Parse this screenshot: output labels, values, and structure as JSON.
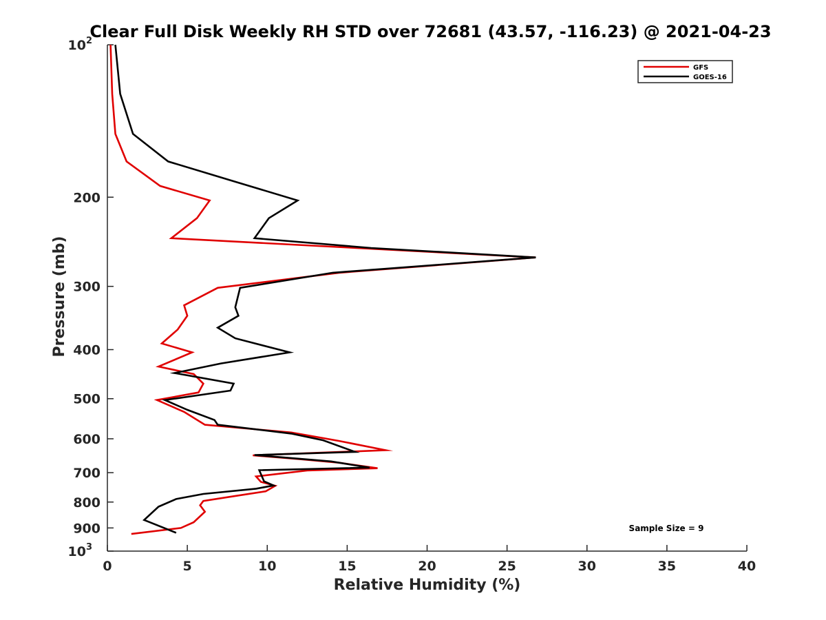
{
  "chart_data": {
    "type": "line",
    "title": "Clear Full Disk Weekly RH STD over 72681 (43.57, -116.23) @ 2021-04-23",
    "xlabel": "Relative Humidity (%)",
    "ylabel": "Pressure (mb)",
    "xlim": [
      0,
      40
    ],
    "ylim": [
      100,
      1000
    ],
    "y_scale": "log",
    "y_reversed": true,
    "x_ticks": [
      "0",
      "5",
      "10",
      "15",
      "20",
      "25",
      "30",
      "35",
      "40"
    ],
    "y_ticks": [
      {
        "value": 100,
        "base": "10",
        "exp": "2"
      },
      {
        "value": 200,
        "label": "200"
      },
      {
        "value": 300,
        "label": "300"
      },
      {
        "value": 400,
        "label": "400"
      },
      {
        "value": 500,
        "label": "500"
      },
      {
        "value": 600,
        "label": "600"
      },
      {
        "value": 700,
        "label": "700"
      },
      {
        "value": 800,
        "label": "800"
      },
      {
        "value": 900,
        "label": "900"
      },
      {
        "value": 1000,
        "base": "10",
        "exp": "3"
      }
    ],
    "legend_position": "top-right",
    "grid": false,
    "series": [
      {
        "name": "GFS",
        "color": "#e00000",
        "points": [
          [
            0.2,
            100
          ],
          [
            0.3,
            125
          ],
          [
            0.5,
            150
          ],
          [
            1.2,
            170
          ],
          [
            3.3,
            190
          ],
          [
            6.4,
            203
          ],
          [
            5.6,
            220
          ],
          [
            4.0,
            241
          ],
          [
            26.8,
            263
          ],
          [
            14.5,
            282
          ],
          [
            6.9,
            302
          ],
          [
            4.8,
            327
          ],
          [
            5.0,
            343
          ],
          [
            4.4,
            365
          ],
          [
            3.4,
            389
          ],
          [
            5.3,
            405
          ],
          [
            3.2,
            432
          ],
          [
            5.4,
            447
          ],
          [
            6.0,
            467
          ],
          [
            5.7,
            486
          ],
          [
            3.1,
            503
          ],
          [
            4.8,
            531
          ],
          [
            6.1,
            563
          ],
          [
            11.5,
            583
          ],
          [
            14.5,
            606
          ],
          [
            17.4,
            632
          ],
          [
            9.1,
            647
          ],
          [
            12.0,
            658
          ],
          [
            14.5,
            669
          ],
          [
            16.9,
            686
          ],
          [
            12.5,
            693
          ],
          [
            9.3,
            712
          ],
          [
            9.6,
            730
          ],
          [
            10.5,
            743
          ],
          [
            9.9,
            762
          ],
          [
            7.8,
            780
          ],
          [
            6.0,
            796
          ],
          [
            5.8,
            812
          ],
          [
            6.1,
            836
          ],
          [
            5.4,
            877
          ],
          [
            4.6,
            900
          ],
          [
            1.5,
            925
          ]
        ]
      },
      {
        "name": "GOES-16",
        "color": "#000000",
        "points": [
          [
            0.5,
            100
          ],
          [
            0.8,
            125
          ],
          [
            1.6,
            150
          ],
          [
            3.8,
            170
          ],
          [
            7.9,
            186
          ],
          [
            11.9,
            203
          ],
          [
            10.1,
            220
          ],
          [
            9.2,
            241
          ],
          [
            16.5,
            252
          ],
          [
            26.8,
            263
          ],
          [
            14.1,
            282
          ],
          [
            8.3,
            302
          ],
          [
            8.0,
            330
          ],
          [
            8.2,
            343
          ],
          [
            6.9,
            362
          ],
          [
            8.0,
            380
          ],
          [
            11.4,
            405
          ],
          [
            7.1,
            426
          ],
          [
            4.2,
            445
          ],
          [
            7.9,
            467
          ],
          [
            7.7,
            482
          ],
          [
            3.6,
            503
          ],
          [
            5.0,
            526
          ],
          [
            6.7,
            551
          ],
          [
            6.9,
            563
          ],
          [
            11.5,
            586
          ],
          [
            13.5,
            604
          ],
          [
            15.5,
            637
          ],
          [
            9.2,
            646
          ],
          [
            14.0,
            665
          ],
          [
            16.4,
            684
          ],
          [
            9.5,
            692
          ],
          [
            9.8,
            728
          ],
          [
            10.4,
            742
          ],
          [
            9.3,
            753
          ],
          [
            6.0,
            771
          ],
          [
            4.3,
            789
          ],
          [
            3.2,
            817
          ],
          [
            2.3,
            868
          ],
          [
            4.3,
            920
          ]
        ]
      }
    ],
    "annotation": "Sample Size = 9"
  }
}
